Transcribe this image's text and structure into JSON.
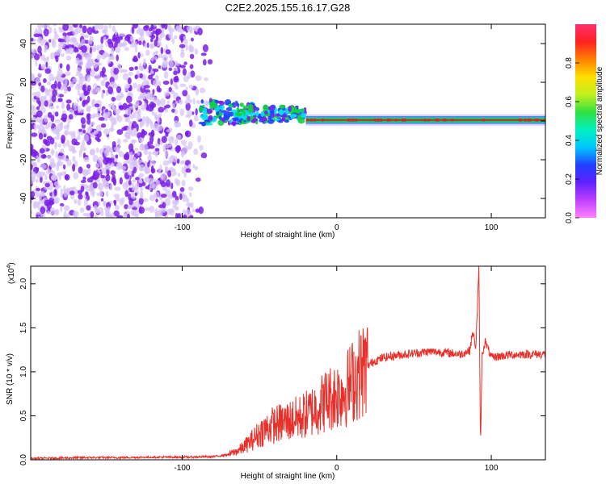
{
  "title": "C2E2.2025.155.16.17.G28",
  "colors": {
    "snr_line": "#e8302a",
    "ridge_red": "#e02020",
    "ridge_green": "#10d040",
    "ridge_cyan": "#00e0f0",
    "ridge_blue": "#2040ff",
    "noise_purple": "#7a1fe6",
    "noise_light": "#d6c2f5"
  },
  "chart_data": [
    {
      "type": "heatmap",
      "xlabel": "Height of straight line (km)",
      "ylabel": "Frequency (Hz)",
      "xlim": [
        -198,
        135
      ],
      "ylim": [
        -50,
        50
      ],
      "xticks": [
        -100,
        0,
        100
      ],
      "xtick_labels": [
        "-100",
        "0",
        "100"
      ],
      "yticks": [
        -40,
        -20,
        0,
        20,
        40
      ],
      "ytick_labels": [
        "-40",
        "-20",
        "0",
        "20",
        "40"
      ],
      "grid": false,
      "colorbar": {
        "label": "Normalized spectral amplitude",
        "range": [
          0,
          1
        ],
        "ticks": [
          0.0,
          0.2,
          0.4,
          0.6,
          0.8
        ],
        "tick_labels": [
          "0.0",
          "0.2",
          "0.4",
          "0.6",
          "0.8"
        ],
        "stops": [
          "#ff80ff",
          "#c040ff",
          "#6020ff",
          "#2040ff",
          "#00c8ff",
          "#00f0c0",
          "#30e040",
          "#c0f020",
          "#ffe000",
          "#ff8000",
          "#ff2020",
          "#ff3070"
        ]
      },
      "description_bands": [
        {
          "x_range": [
            -198,
            -80
          ],
          "kind": "broadband noise",
          "freq_range": [
            -50,
            50
          ]
        },
        {
          "x_range": [
            -88,
            -20
          ],
          "kind": "scattered energy near 0 Hz",
          "freq_range": [
            -8,
            12
          ]
        },
        {
          "x_range": [
            -20,
            135
          ],
          "kind": "coherent ridge",
          "freq": 0.5
        }
      ]
    },
    {
      "type": "line",
      "xlabel": "Height of straight line (km)",
      "ylabel": "SNR (10 * v/v)",
      "y_multiplier_label": "(x10",
      "y_multiplier_exp": "4",
      "y_multiplier_close": ")",
      "xlim": [
        -198,
        135
      ],
      "ylim": [
        0,
        22000
      ],
      "xticks": [
        -100,
        0,
        100
      ],
      "xtick_labels": [
        "-100",
        "0",
        "100"
      ],
      "yticks": [
        0,
        5000,
        10000,
        15000,
        20000
      ],
      "ytick_labels": [
        "0.0",
        "0.5",
        "1.0",
        "1.5",
        "2.0"
      ],
      "grid": false,
      "series": [
        {
          "x": [
            -198,
            -180,
            -160,
            -140,
            -120,
            -100,
            -80,
            -70,
            -62,
            -55,
            -48,
            -42,
            -36,
            -30,
            -24,
            -18,
            -12,
            -6,
            0,
            6,
            12,
            18,
            24,
            30,
            40,
            50,
            60,
            70,
            80,
            86,
            88,
            90,
            92,
            93,
            94,
            96,
            100,
            110,
            120,
            135
          ],
          "y": [
            150,
            200,
            250,
            250,
            300,
            300,
            350,
            600,
            1200,
            2200,
            3300,
            3900,
            4200,
            4500,
            4800,
            5300,
            6100,
            6900,
            7400,
            8000,
            9400,
            10400,
            11200,
            11600,
            11900,
            12100,
            12300,
            12200,
            12000,
            12400,
            14500,
            12800,
            21800,
            1000,
            11800,
            13500,
            11600,
            11900,
            12000,
            12000
          ]
        }
      ]
    }
  ]
}
